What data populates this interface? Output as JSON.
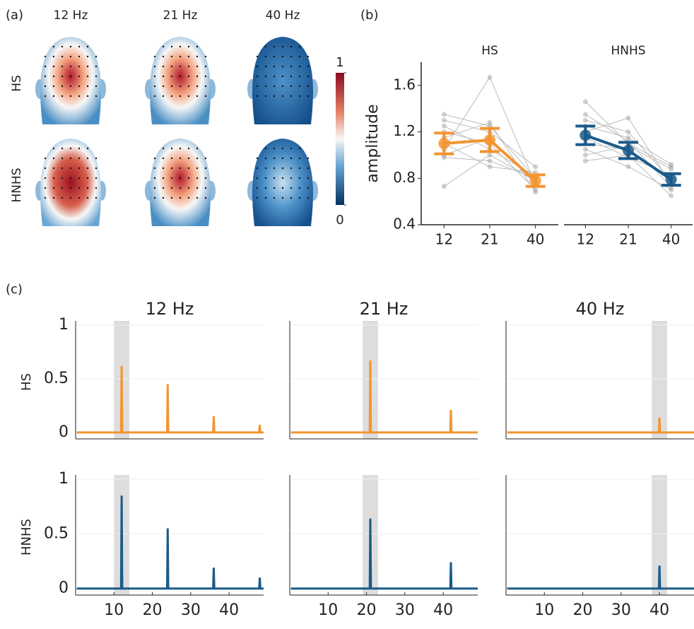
{
  "chart_data": [
    {
      "type": "topomap",
      "label": "(a)",
      "columns": [
        "12 Hz",
        "21 Hz",
        "40 Hz"
      ],
      "rows": [
        "HS",
        "HNHS"
      ],
      "clim": [
        0,
        1
      ],
      "cticks": [
        0,
        1
      ]
    },
    {
      "type": "line",
      "label": "(b)",
      "ylabel": "amplitude",
      "categories": [
        12,
        21,
        40
      ],
      "ylim": [
        0.4,
        1.8
      ],
      "yticks": [
        0.4,
        0.8,
        1.2,
        1.6
      ],
      "panels": [
        {
          "title": "HS",
          "color": "#f39530",
          "mean": [
            1.1,
            1.13,
            0.78
          ],
          "error": [
            0.09,
            0.1,
            0.05
          ],
          "subjects": [
            [
              1.3,
              1.2,
              0.9
            ],
            [
              1.35,
              1.25,
              0.8
            ],
            [
              1.05,
              1.67,
              0.75
            ],
            [
              0.73,
              1.0,
              0.78
            ],
            [
              1.2,
              1.1,
              0.7
            ],
            [
              1.1,
              0.9,
              0.85
            ],
            [
              1.0,
              1.15,
              0.75
            ],
            [
              1.25,
              1.05,
              0.82
            ],
            [
              1.15,
              1.28,
              0.68
            ],
            [
              0.98,
              0.95,
              0.8
            ]
          ]
        },
        {
          "title": "HNHS",
          "color": "#1a5b8a",
          "mean": [
            1.17,
            1.04,
            0.79
          ],
          "error": [
            0.08,
            0.07,
            0.05
          ],
          "subjects": [
            [
              1.46,
              1.1,
              0.9
            ],
            [
              1.3,
              1.2,
              0.78
            ],
            [
              1.1,
              1.05,
              0.8
            ],
            [
              0.95,
              1.0,
              0.65
            ],
            [
              1.2,
              1.32,
              0.75
            ],
            [
              1.25,
              1.15,
              0.92
            ],
            [
              1.05,
              0.9,
              0.7
            ],
            [
              1.15,
              0.98,
              0.83
            ],
            [
              1.35,
              1.12,
              0.72
            ],
            [
              1.0,
              1.08,
              0.88
            ]
          ]
        }
      ]
    },
    {
      "type": "spectrum",
      "label": "(c)",
      "columns": [
        "12 Hz",
        "21 Hz",
        "40 Hz"
      ],
      "bands": [
        [
          10,
          14
        ],
        [
          19,
          23
        ],
        [
          38,
          42
        ]
      ],
      "xlim": [
        0,
        49
      ],
      "xticks": [
        10,
        20,
        30,
        40
      ],
      "ylim": [
        -0.06,
        1
      ],
      "yticks": [
        0,
        0.5,
        1
      ],
      "series": [
        {
          "name": "HS",
          "color": "#f39530",
          "spectra": [
            {
              "x": [
                0.3,
                11.85,
                12,
                12.15,
                23.85,
                24,
                24.15,
                35.85,
                36,
                36.15,
                47.85,
                48,
                48.15,
                49
              ],
              "values": [
                0,
                0,
                0.62,
                0,
                0,
                0.45,
                0,
                0,
                0.15,
                0,
                0,
                0.07,
                0,
                0
              ]
            },
            {
              "x": [
                0.3,
                20.85,
                21,
                21.15,
                41.85,
                42,
                42.15,
                49
              ],
              "values": [
                0,
                0,
                0.67,
                0,
                0,
                0.21,
                0,
                0
              ]
            },
            {
              "x": [
                0.3,
                39.85,
                40,
                40.15,
                49
              ],
              "values": [
                0,
                0,
                0.14,
                0,
                0
              ]
            }
          ]
        },
        {
          "name": "HNHS",
          "color": "#1a5b8a",
          "spectra": [
            {
              "x": [
                0.3,
                11.85,
                12,
                12.15,
                23.85,
                24,
                24.15,
                35.85,
                36,
                36.15,
                47.85,
                48,
                48.15,
                49
              ],
              "values": [
                0,
                0,
                0.85,
                0,
                0,
                0.55,
                0,
                0,
                0.19,
                0,
                0,
                0.1,
                0,
                0
              ]
            },
            {
              "x": [
                0.3,
                20.85,
                21,
                21.15,
                41.85,
                42,
                42.15,
                49
              ],
              "values": [
                0,
                0,
                0.64,
                0,
                0,
                0.24,
                0,
                0
              ]
            },
            {
              "x": [
                0.3,
                39.85,
                40,
                40.15,
                49
              ],
              "values": [
                0,
                0,
                0.21,
                0,
                0
              ]
            }
          ]
        }
      ]
    }
  ]
}
